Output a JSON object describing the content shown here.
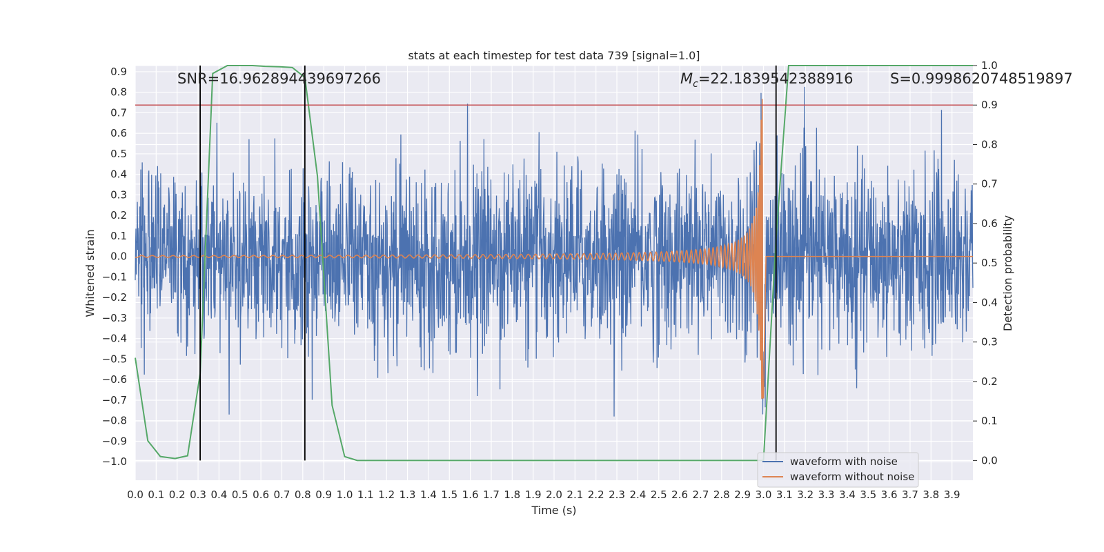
{
  "chart_data": {
    "type": "line",
    "title": "stats at each timestep for test data 739 [signal=1.0]",
    "xlabel": "Time (s)",
    "ylabel_left": "Whitened strain",
    "ylabel_right": "Detection probability",
    "xlim": [
      0.0,
      4.0
    ],
    "ylim_left": [
      -1.09,
      0.93
    ],
    "ylim_right": [
      -0.05,
      1.0
    ],
    "xticks": [
      "0.0",
      "0.1",
      "0.2",
      "0.3",
      "0.4",
      "0.5",
      "0.6",
      "0.7",
      "0.8",
      "0.9",
      "1.0",
      "1.1",
      "1.2",
      "1.3",
      "1.4",
      "1.5",
      "1.6",
      "1.7",
      "1.8",
      "1.9",
      "2.0",
      "2.1",
      "2.2",
      "2.3",
      "2.4",
      "2.5",
      "2.6",
      "2.7",
      "2.8",
      "2.9",
      "3.0",
      "3.1",
      "3.2",
      "3.3",
      "3.4",
      "3.5",
      "3.6",
      "3.7",
      "3.8",
      "3.9"
    ],
    "yticks_left": [
      "0.9",
      "0.8",
      "0.7",
      "0.6",
      "0.5",
      "0.4",
      "0.3",
      "0.2",
      "0.1",
      "0.0",
      "−0.1",
      "−0.2",
      "−0.3",
      "−0.4",
      "−0.5",
      "−0.6",
      "−0.7",
      "−0.8",
      "−0.9",
      "−1.0"
    ],
    "yticks_right": [
      "1.0",
      "0.9",
      "0.8",
      "0.7",
      "0.6",
      "0.5",
      "0.4",
      "0.3",
      "0.2",
      "0.1",
      "0.0"
    ],
    "grid": true,
    "legend_position": "bottom-right",
    "series": [
      {
        "name": "waveform with noise",
        "color": "#4c72b0",
        "axis": "left",
        "kind": "noise",
        "approx_amplitude": 0.45
      },
      {
        "name": "waveform without noise",
        "color": "#dd8452",
        "axis": "left",
        "kind": "chirp",
        "merger_time": 3.0,
        "peak": 0.78
      },
      {
        "name": "",
        "color": "#55a868",
        "axis": "right",
        "x": [
          0.0,
          0.06,
          0.12,
          0.19,
          0.25,
          0.31,
          0.37,
          0.44,
          0.5,
          0.56,
          0.62,
          0.69,
          0.75,
          0.81,
          0.87,
          0.94,
          1.0,
          1.06,
          1.12,
          1.5,
          2.0,
          2.5,
          2.94,
          3.0,
          3.06,
          3.12,
          3.5,
          4.0
        ],
        "y": [
          0.26,
          0.05,
          0.01,
          0.005,
          0.012,
          0.22,
          0.98,
          1.0,
          1.0,
          1.0,
          0.998,
          0.997,
          0.995,
          0.97,
          0.72,
          0.14,
          0.01,
          0.0,
          0.0,
          0.0,
          0.0,
          0.0,
          0.0,
          0.0,
          0.56,
          1.0,
          1.0,
          1.0
        ]
      }
    ],
    "threshold_line": {
      "value": 0.9,
      "axis": "right",
      "color": "#c44e52"
    },
    "vertical_markers": [
      0.31,
      0.81,
      3.06
    ],
    "annotations": {
      "snr": "SNR=16.962894439697266",
      "mc_symbol": "M",
      "mc_sub": "c",
      "mc_value": "=22.1839542388916",
      "s": "S=0.9998620748519897"
    }
  }
}
